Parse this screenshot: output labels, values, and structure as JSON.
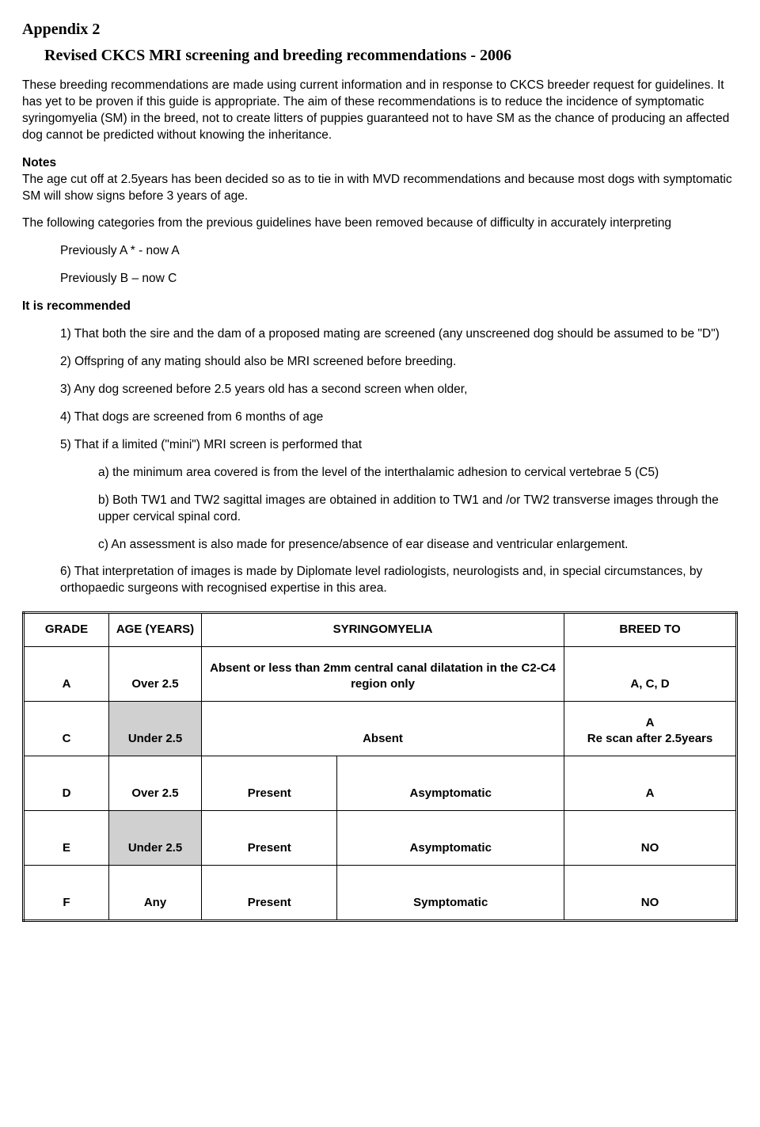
{
  "header": {
    "appendix": "Appendix 2",
    "title": "Revised CKCS MRI screening and breeding recommendations - 2006"
  },
  "intro": "These breeding recommendations are made using current information and in response to CKCS breeder request for guidelines. It has yet to be proven if this guide is appropriate. The aim of these recommendations is to reduce the incidence of symptomatic syringomyelia (SM) in the breed, not to create litters of puppies guaranteed not to have SM as the chance of producing an affected dog cannot be predicted without knowing the inheritance.",
  "notes": {
    "label": "Notes",
    "body": "The age cut off at 2.5years has been decided so as to tie in with MVD recommendations and because most dogs with symptomatic SM will show signs before 3 years of age."
  },
  "removed": {
    "lead": "The following categories from the previous guidelines have been removed because of difficulty in accurately interpreting",
    "a": "Previously A * - now A",
    "b": "Previously B – now C"
  },
  "recommended_label": "It is recommended",
  "rec": {
    "r1": "1) That both the sire and the dam of a proposed mating are screened (any unscreened dog should be assumed to be \"D\")",
    "r2": "2) Offspring of any mating should also be MRI screened before breeding.",
    "r3": "3) Any dog screened before 2.5 years old has a second screen when older,",
    "r4": "4) That dogs are screened from 6 months of age",
    "r5": "5) That if a limited (\"mini\") MRI screen is performed that",
    "r5a": "a) the minimum area covered is from  the level of the interthalamic adhesion to cervical vertebrae 5 (C5)",
    "r5b": "b) Both TW1 and TW2  sagittal images are obtained in addition to TW1 and /or TW2 transverse images through the upper cervical spinal cord.",
    "r5c": "c) An assessment is also made for presence/absence of ear disease and ventricular enlargement.",
    "r6": "6) That interpretation of images is made by Diplomate level radiologists, neurologists and, in special circumstances, by orthopaedic surgeons with recognised expertise in this area."
  },
  "table": {
    "headers": {
      "grade": "GRADE",
      "age": "AGE (YEARS)",
      "sm": "SYRINGOMYELIA",
      "breed": "BREED TO"
    },
    "rows": [
      {
        "grade": "A",
        "age": "Over 2.5",
        "sm": "Absent or less than 2mm central canal dilatation in the C2-C4 region only",
        "sm2": "",
        "breed": "A, C, D",
        "shaded": false
      },
      {
        "grade": "C",
        "age": "Under 2.5",
        "sm": "Absent",
        "sm2": "",
        "breed": "A\nRe scan after 2.5years",
        "shaded": true
      },
      {
        "grade": "D",
        "age": "Over 2.5",
        "sm": "Present",
        "sm2": "Asymptomatic",
        "breed": "A",
        "shaded": false
      },
      {
        "grade": "E",
        "age": "Under 2.5",
        "sm": "Present",
        "sm2": "Asymptomatic",
        "breed": "NO",
        "shaded": true
      },
      {
        "grade": "F",
        "age": "Any",
        "sm": "Present",
        "sm2": "Symptomatic",
        "breed": "NO",
        "shaded": false
      }
    ],
    "styling": {
      "border_color": "#000000",
      "shaded_bg": "#d0d0d0",
      "font_size": 15,
      "header_font_weight": "bold"
    }
  }
}
